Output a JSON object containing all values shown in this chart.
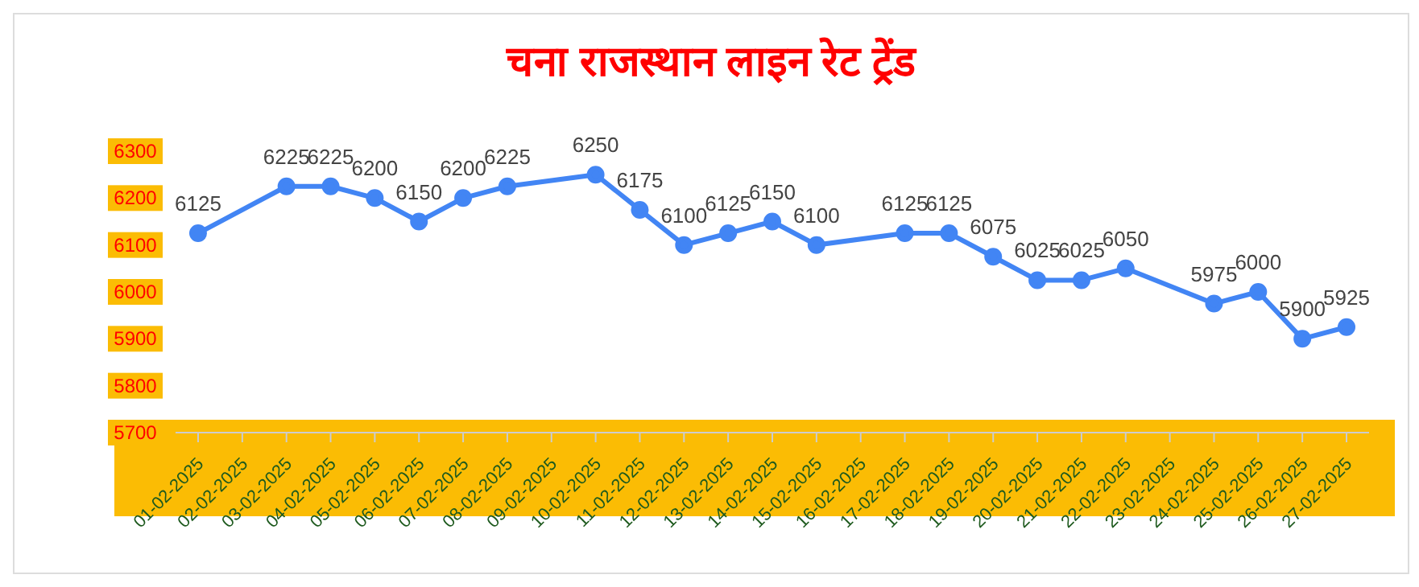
{
  "chart_data": {
    "type": "line",
    "title": "चना राजस्थान लाइन रेट ट्रेंड",
    "categories": [
      "01-02-2025",
      "02-02-2025",
      "03-02-2025",
      "04-02-2025",
      "05-02-2025",
      "06-02-2025",
      "07-02-2025",
      "08-02-2025",
      "09-02-2025",
      "10-02-2025",
      "11-02-2025",
      "12-02-2025",
      "13-02-2025",
      "14-02-2025",
      "15-02-2025",
      "16-02-2025",
      "17-02-2025",
      "18-02-2025",
      "19-02-2025",
      "20-02-2025",
      "21-02-2025",
      "22-02-2025",
      "23-02-2025",
      "24-02-2025",
      "25-02-2025",
      "26-02-2025",
      "27-02-2025"
    ],
    "series": [
      {
        "color": "#4285f4",
        "values": [
          6125,
          null,
          6225,
          6225,
          6200,
          6150,
          6200,
          6225,
          null,
          6250,
          6175,
          6100,
          6125,
          6150,
          6100,
          null,
          6125,
          6125,
          6075,
          6025,
          6025,
          6050,
          null,
          5975,
          6000,
          5900,
          5925
        ]
      }
    ],
    "ylim": [
      5700,
      6300
    ],
    "yticks": [
      5700,
      5800,
      5900,
      6000,
      6100,
      6200,
      6300
    ],
    "grid": false,
    "legend": false,
    "marker": "circle",
    "line_style": "solid",
    "data_labels": true
  }
}
